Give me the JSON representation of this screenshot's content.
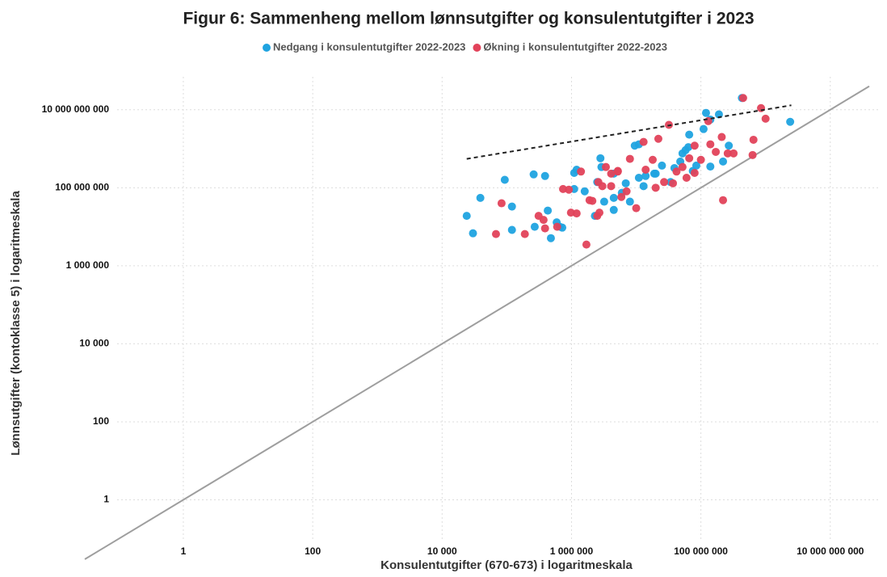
{
  "chart_data": {
    "type": "scatter",
    "title": "Figur 6: Sammenheng mellom lønnsutgifter og konsulentutgifter i 2023",
    "x_label": "Konsulentutgifter (670-673) i logaritmeskala",
    "y_label": "Lønnsutgifter (kontoklasse 5) i logaritmeskala",
    "xscale": "log",
    "yscale": "log",
    "grid": true,
    "legend": "top",
    "xlim": [
      0.03,
      40000000000.0
    ],
    "ylim": [
      0.03,
      70000000000.0
    ],
    "xticks": [
      1,
      100,
      {
        "value": 10000,
        "label": "10 000"
      },
      {
        "value": 1000000,
        "label": "1 000 000"
      },
      {
        "value": 100000000,
        "label": "100 000 000"
      },
      {
        "value": 10000000000,
        "label": "10 000 000 000"
      }
    ],
    "yticks": [
      1,
      100,
      {
        "value": 10000,
        "label": "10 000"
      },
      {
        "value": 1000000,
        "label": "1 000 000"
      },
      {
        "value": 100000000,
        "label": "100 000 000"
      },
      {
        "value": 10000000000,
        "label": "10 000 000 000"
      }
    ],
    "reference_line_color": "#9e9e9e",
    "trend_line": {
      "x": [
        24000,
        2500000000.0
      ],
      "y": [
        550000000.0,
        13000000000.0
      ],
      "color": "#222222"
    },
    "series": [
      {
        "name": "Nedgang i konsulentutgifter 2022-2023",
        "color": "#1fa3e0",
        "x": [
          24000,
          30000,
          39000,
          93000,
          120000,
          120000,
          270000,
          260000,
          390000,
          430000,
          480000,
          590000,
          660000,
          720000,
          1100000.0,
          1200000.0,
          1100000.0,
          2800000.0,
          2900000.0,
          2300000.0,
          3200000.0,
          4500000.0,
          6900000.0,
          11000000.0,
          14000000.0,
          19000000.0,
          25000000.0,
          39000000.0,
          52000000.0,
          58000000.0,
          64000000.0,
          66000000.0,
          110000000.0,
          120000000.0,
          140000000.0,
          190000000.0,
          430000000.0,
          2400000000.0,
          270000000.0,
          220000000.0,
          140000000.0,
          75000000.0,
          34000000.0,
          20000000.0,
          9500000.0,
          11000000.0,
          13000000.0,
          8000000.0,
          6000000.0,
          4500000.0,
          1600000.0,
          2500000.0,
          4500000.0,
          48000000.0,
          85000000.0
        ],
        "values": [
          19000000.0,
          6800000.0,
          55000000.0,
          160000000.0,
          33000000.0,
          8300000.0,
          10000000.0,
          220000000.0,
          200000000.0,
          26000000.0,
          5100000.0,
          13000000.0,
          10000000.0,
          9500000.0,
          240000000.0,
          290000000.0,
          93000000.0,
          570000000.0,
          340000000.0,
          19000000.0,
          44000000.0,
          55000000.0,
          130000000.0,
          180000000.0,
          200000000.0,
          230000000.0,
          370000000.0,
          320000000.0,
          760000000.0,
          920000000.0,
          1100000000.0,
          2300000000.0,
          3200000000.0,
          8300000000.0,
          5600000000.0,
          7600000000.0,
          20000000000.0,
          4900000000.0,
          1200000000.0,
          470000000.0,
          350000000.0,
          270000000.0,
          140000000.0,
          230000000.0,
          1200000000.0,
          1300000000.0,
          110000000.0,
          44000000.0,
          74000000.0,
          27000000.0,
          81000000.0,
          140000000.0,
          230000000.0,
          470000000.0,
          370000000.0
        ]
      },
      {
        "name": "Økning i konsulentutgifter 2022-2023",
        "color": "#e2425a",
        "x": [
          68000,
          83000,
          190000,
          310000,
          370000,
          390000,
          600000,
          740000,
          910000,
          980000,
          1200000.0,
          1400000.0,
          1700000.0,
          1900000.0,
          2100000.0,
          2500000.0,
          2700000.0,
          3000000.0,
          3400000.0,
          4100000.0,
          5200000.0,
          5900000.0,
          7100000.0,
          8000000.0,
          10000000.0,
          13000000.0,
          18000000.0,
          22000000.0,
          27000000.0,
          32000000.0,
          37000000.0,
          42000000.0,
          52000000.0,
          66000000.0,
          80000000.0,
          100000000.0,
          140000000.0,
          170000000.0,
          210000000.0,
          220000000.0,
          260000000.0,
          320000000.0,
          450000000.0,
          630000000.0,
          650000000.0,
          850000000.0,
          1000000000.0,
          130000000.0,
          20000000.0,
          5200000.0,
          2600000.0,
          80000000.0,
          60000000.0,
          14000000.0,
          4100000.0
        ],
        "values": [
          6500000.0,
          40000000.0,
          6500000.0,
          19000000.0,
          15000000.0,
          9100000.0,
          10000000.0,
          93000000.0,
          89000000.0,
          23000000.0,
          22000000.0,
          260000000.0,
          3500000.0,
          48000000.0,
          46000000.0,
          19000000.0,
          23000000.0,
          110000000.0,
          340000000.0,
          110000000.0,
          270000000.0,
          58000000.0,
          81000000.0,
          550000000.0,
          30000000.0,
          1500000000.0,
          520000000.0,
          1800000000.0,
          140000000.0,
          4100000000.0,
          130000000.0,
          260000000.0,
          340000000.0,
          570000000.0,
          1200000000.0,
          520000000.0,
          1300000000.0,
          830000000.0,
          2000000000.0,
          48000000.0,
          760000000.0,
          760000000.0,
          20000000000.0,
          690000000.0,
          1700000000.0,
          11000000000.0,
          5900000000.0,
          5100000000.0,
          100000000.0,
          260000000.0,
          140000000.0,
          240000000.0,
          180000000.0,
          290000000.0,
          230000000.0
        ]
      }
    ]
  }
}
